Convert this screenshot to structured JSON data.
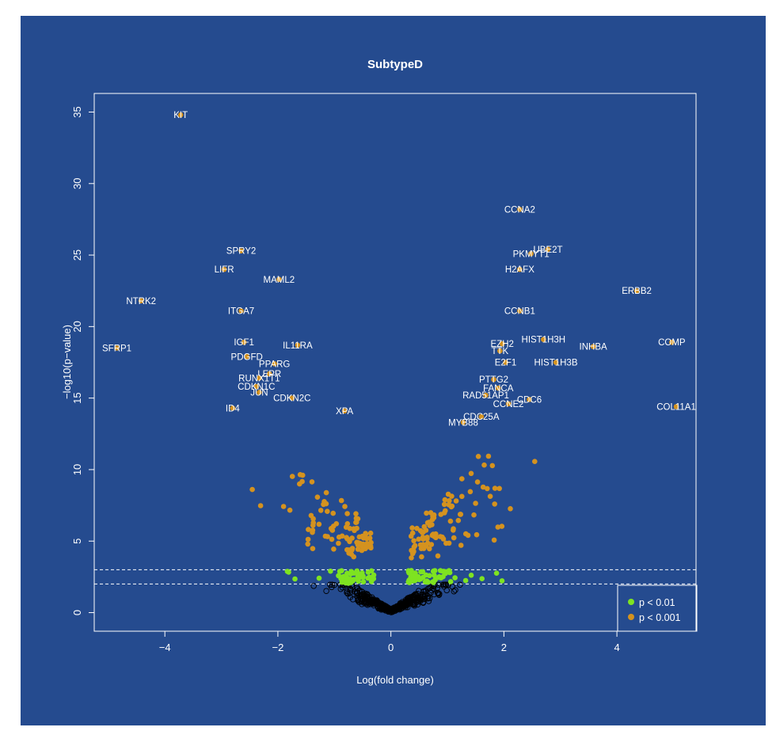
{
  "colors": {
    "background": "#254b8f",
    "foreground": "#ffffff",
    "sig_01": "#7ee321",
    "sig_001": "#d4921f",
    "nonsig": "#000000"
  },
  "chart_data": {
    "type": "scatter",
    "title": "SubtypeD",
    "xlabel": "Log(fold change)",
    "ylabel": "−log10(p−value)",
    "xlim": [
      -5.25,
      5.4
    ],
    "ylim": [
      -1.3,
      36.3
    ],
    "xticks": [
      -4,
      -2,
      0,
      2,
      4
    ],
    "yticks": [
      0,
      5,
      10,
      15,
      20,
      25,
      30,
      35
    ],
    "xtick_labels": [
      "−4",
      "−2",
      "0",
      "2",
      "4"
    ],
    "ytick_labels": [
      "0",
      "5",
      "10",
      "15",
      "20",
      "25",
      "30",
      "35"
    ],
    "thresholds": [
      2,
      3
    ],
    "legend": [
      {
        "label": "p < 0.01",
        "color": "#7ee321"
      },
      {
        "label": "p < 0.001",
        "color": "#d4921f"
      }
    ],
    "labeled_genes": [
      {
        "name": "KIT",
        "x": -3.72,
        "y": 34.8
      },
      {
        "name": "CCNA2",
        "x": 2.28,
        "y": 28.2
      },
      {
        "name": "SPRY2",
        "x": -2.65,
        "y": 25.3
      },
      {
        "name": "UBE2T",
        "x": 2.78,
        "y": 25.4
      },
      {
        "name": "PKMYT1",
        "x": 2.48,
        "y": 25.1
      },
      {
        "name": "LIFR",
        "x": -2.95,
        "y": 24.0
      },
      {
        "name": "H2AFX",
        "x": 2.28,
        "y": 24.0
      },
      {
        "name": "MAML2",
        "x": -1.98,
        "y": 23.3
      },
      {
        "name": "ERBB2",
        "x": 4.35,
        "y": 22.5
      },
      {
        "name": "NTRK2",
        "x": -4.42,
        "y": 21.8
      },
      {
        "name": "ITGA7",
        "x": -2.65,
        "y": 21.1
      },
      {
        "name": "CCNB1",
        "x": 2.28,
        "y": 21.1
      },
      {
        "name": "SFRP1",
        "x": -4.85,
        "y": 18.5
      },
      {
        "name": "IGF1",
        "x": -2.6,
        "y": 18.9
      },
      {
        "name": "IL11RA",
        "x": -1.65,
        "y": 18.7
      },
      {
        "name": "EZH2",
        "x": 1.97,
        "y": 18.8
      },
      {
        "name": "HIST1H3H",
        "x": 2.7,
        "y": 19.1
      },
      {
        "name": "INHBA",
        "x": 3.58,
        "y": 18.6
      },
      {
        "name": "COMP",
        "x": 4.97,
        "y": 18.9
      },
      {
        "name": "TTK",
        "x": 1.93,
        "y": 18.3
      },
      {
        "name": "PDGFD",
        "x": -2.55,
        "y": 17.9
      },
      {
        "name": "E2F1",
        "x": 2.03,
        "y": 17.5
      },
      {
        "name": "HIST1H3B",
        "x": 2.92,
        "y": 17.5
      },
      {
        "name": "PPARG",
        "x": -2.06,
        "y": 17.4
      },
      {
        "name": "LEPR",
        "x": -2.15,
        "y": 16.7
      },
      {
        "name": "RUNX1T1",
        "x": -2.33,
        "y": 16.4
      },
      {
        "name": "PTTG2",
        "x": 1.82,
        "y": 16.3
      },
      {
        "name": "CDKN1C",
        "x": -2.38,
        "y": 15.8
      },
      {
        "name": "FANCA",
        "x": 1.9,
        "y": 15.7
      },
      {
        "name": "JUN",
        "x": -2.33,
        "y": 15.4
      },
      {
        "name": "RAD51AP1",
        "x": 1.68,
        "y": 15.2
      },
      {
        "name": "CDC6",
        "x": 2.45,
        "y": 14.9
      },
      {
        "name": "CDKN2C",
        "x": -1.75,
        "y": 15.0
      },
      {
        "name": "CCNE2",
        "x": 2.08,
        "y": 14.6
      },
      {
        "name": "COL11A1",
        "x": 5.05,
        "y": 14.4
      },
      {
        "name": "ID4",
        "x": -2.8,
        "y": 14.3
      },
      {
        "name": "XPA",
        "x": -0.82,
        "y": 14.1
      },
      {
        "name": "CDC25A",
        "x": 1.6,
        "y": 13.7
      },
      {
        "name": "MYB88",
        "x": 1.28,
        "y": 13.3
      }
    ]
  }
}
